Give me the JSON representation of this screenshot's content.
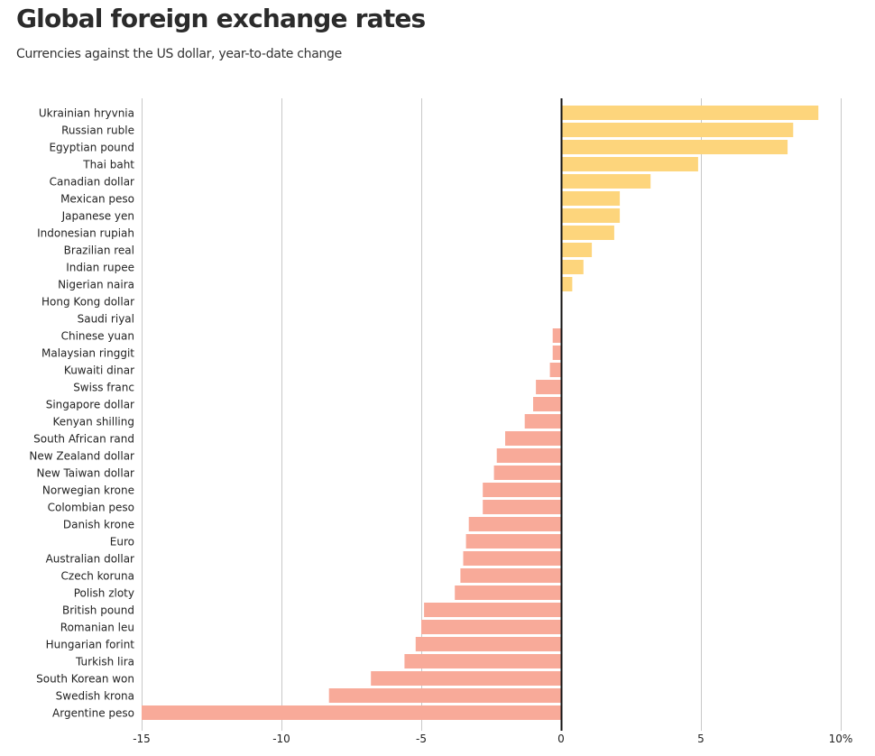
{
  "header": {
    "title": "Global foreign exchange rates",
    "subtitle": "Currencies against the US dollar, year-to-date change"
  },
  "colors": {
    "positive": "#fdd57c",
    "negative": "#f8aa99",
    "gridline": "#c8c8c8",
    "zero_line": "#111111",
    "text": "#222222"
  },
  "chart_data": {
    "type": "bar",
    "orientation": "horizontal",
    "title": "Global foreign exchange rates",
    "subtitle": "Currencies against the US dollar, year-to-date change",
    "xlabel": "",
    "ylabel": "",
    "xlim": [
      -15,
      10
    ],
    "x_ticks": [
      -15,
      -10,
      -5,
      0,
      5,
      10
    ],
    "x_tick_labels": [
      "-15",
      "-10",
      "-5",
      "0",
      "5",
      "10%"
    ],
    "grid": true,
    "unit": "%",
    "categories": [
      "Ukrainian hryvnia",
      "Russian ruble",
      "Egyptian pound",
      "Thai baht",
      "Canadian dollar",
      "Mexican peso",
      "Japanese yen",
      "Indonesian rupiah",
      "Brazilian real",
      "Indian rupee",
      "Nigerian naira",
      "Hong Kong dollar",
      "Saudi riyal",
      "Chinese yuan",
      "Malaysian ringgit",
      "Kuwaiti dinar",
      "Swiss franc",
      "Singapore dollar",
      "Kenyan shilling",
      "South African rand",
      "New Zealand dollar",
      "New Taiwan dollar",
      "Norwegian krone",
      "Colombian peso",
      "Danish krone",
      "Euro",
      "Australian dollar",
      "Czech koruna",
      "Polish zloty",
      "British pound",
      "Romanian leu",
      "Hungarian forint",
      "Turkish lira",
      "South Korean won",
      "Swedish krona",
      "Argentine peso"
    ],
    "values": [
      9.2,
      8.3,
      8.1,
      4.9,
      3.2,
      2.1,
      2.1,
      1.9,
      1.1,
      0.8,
      0.4,
      0.05,
      0.0,
      -0.3,
      -0.3,
      -0.4,
      -0.9,
      -1.0,
      -1.3,
      -2.0,
      -2.3,
      -2.4,
      -2.8,
      -2.8,
      -3.3,
      -3.4,
      -3.5,
      -3.6,
      -3.8,
      -4.9,
      -5.0,
      -5.2,
      -5.6,
      -6.8,
      -8.3,
      -15.0
    ]
  }
}
